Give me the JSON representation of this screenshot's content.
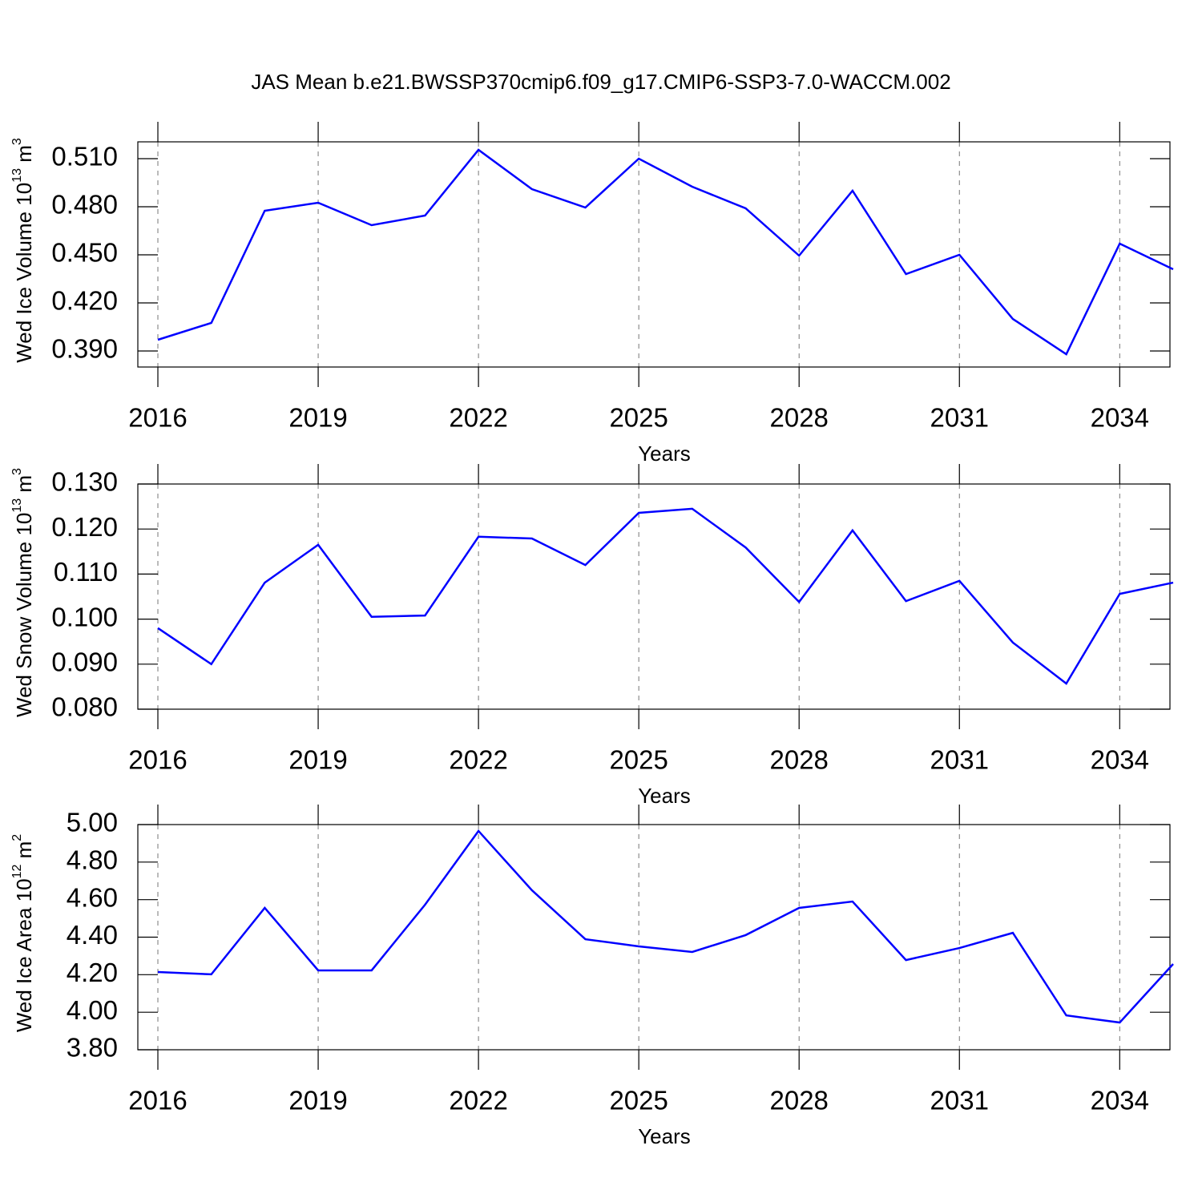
{
  "title": "JAS Mean b.e21.BWSSP370cmip6.f09_g17.CMIP6-SSP3-7.0-WACCM.002",
  "chart_data": [
    {
      "type": "line",
      "xlabel": "Years",
      "ylabel": [
        "Wed Ice Volume 10",
        "13",
        " m",
        "3"
      ],
      "x": [
        2016,
        2017,
        2018,
        2019,
        2020,
        2021,
        2022,
        2023,
        2024,
        2025,
        2026,
        2027,
        2028,
        2029,
        2030,
        2031,
        2032,
        2033,
        2034,
        2035
      ],
      "series": [
        {
          "color": "#0000ff",
          "values": [
            0.397,
            0.4075,
            0.4775,
            0.4825,
            0.4685,
            0.4745,
            0.5155,
            0.491,
            0.4795,
            0.51,
            0.4925,
            0.479,
            0.4495,
            0.49,
            0.438,
            0.45,
            0.41,
            0.388,
            0.457,
            0.441
          ]
        }
      ],
      "xlim": [
        2015.625,
        2034.94
      ],
      "xticks": [
        2016,
        2019,
        2022,
        2025,
        2028,
        2031,
        2034
      ],
      "ylim": [
        0.38,
        0.5205
      ],
      "yticks": [
        {
          "value": 0.39,
          "label": "0.390"
        },
        {
          "value": 0.42,
          "label": "0.420"
        },
        {
          "value": 0.45,
          "label": "0.450"
        },
        {
          "value": 0.48,
          "label": "0.480"
        },
        {
          "value": 0.51,
          "label": "0.510"
        }
      ],
      "grid": true
    },
    {
      "type": "line",
      "xlabel": "Years",
      "ylabel": [
        "Wed Snow Volume 10",
        "13",
        " m",
        "3"
      ],
      "x": [
        2016,
        2017,
        2018,
        2019,
        2020,
        2021,
        2022,
        2023,
        2024,
        2025,
        2026,
        2027,
        2028,
        2029,
        2030,
        2031,
        2032,
        2033,
        2034,
        2035
      ],
      "series": [
        {
          "color": "#0000ff",
          "values": [
            0.098,
            0.09,
            0.1081,
            0.1165,
            0.1005,
            0.1008,
            0.1183,
            0.1179,
            0.112,
            0.1236,
            0.1245,
            0.1159,
            0.1038,
            0.1197,
            0.104,
            0.1085,
            0.0948,
            0.0857,
            0.1056,
            0.1081
          ]
        }
      ],
      "xlim": [
        2015.625,
        2034.94
      ],
      "xticks": [
        2016,
        2019,
        2022,
        2025,
        2028,
        2031,
        2034
      ],
      "ylim": [
        0.08,
        0.13
      ],
      "yticks": [
        {
          "value": 0.08,
          "label": "0.080"
        },
        {
          "value": 0.09,
          "label": "0.090"
        },
        {
          "value": 0.1,
          "label": "0.100"
        },
        {
          "value": 0.11,
          "label": "0.110"
        },
        {
          "value": 0.12,
          "label": "0.120"
        },
        {
          "value": 0.13,
          "label": "0.130"
        }
      ],
      "grid": true
    },
    {
      "type": "line",
      "xlabel": "Years",
      "ylabel": [
        "Wed Ice Area 10",
        "12",
        " m",
        "2"
      ],
      "x": [
        2016,
        2017,
        2018,
        2019,
        2020,
        2021,
        2022,
        2023,
        2024,
        2025,
        2026,
        2027,
        2028,
        2029,
        2030,
        2031,
        2032,
        2033,
        2034,
        2035
      ],
      "series": [
        {
          "color": "#0000ff",
          "values": [
            4.214,
            4.202,
            4.556,
            4.223,
            4.223,
            4.573,
            4.966,
            4.65,
            4.389,
            4.351,
            4.321,
            4.411,
            4.556,
            4.59,
            4.278,
            4.342,
            4.423,
            3.983,
            3.945,
            4.257
          ]
        }
      ],
      "xlim": [
        2015.625,
        2034.94
      ],
      "xticks": [
        2016,
        2019,
        2022,
        2025,
        2028,
        2031,
        2034
      ],
      "ylim": [
        3.8,
        5.0
      ],
      "yticks": [
        {
          "value": 3.8,
          "label": "3.80"
        },
        {
          "value": 4.0,
          "label": "4.00"
        },
        {
          "value": 4.2,
          "label": "4.20"
        },
        {
          "value": 4.4,
          "label": "4.40"
        },
        {
          "value": 4.6,
          "label": "4.60"
        },
        {
          "value": 4.8,
          "label": "4.80"
        },
        {
          "value": 5.0,
          "label": "5.00"
        }
      ],
      "grid": true
    }
  ]
}
